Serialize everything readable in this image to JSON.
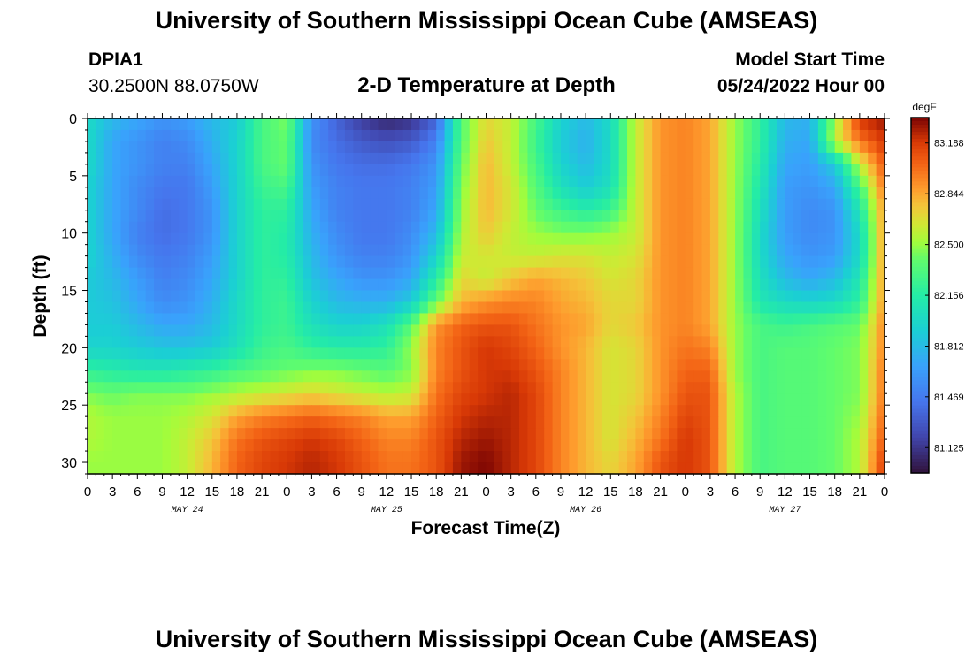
{
  "header": {
    "title": "University of Southern Mississippi Ocean Cube (AMSEAS)",
    "station_id": "DPIA1",
    "station_coords": "30.2500N  88.0750W",
    "plot_title": "2-D Temperature at Depth",
    "start_label": "Model Start Time",
    "start_value": "05/24/2022 Hour 00"
  },
  "footer": {
    "title_repeat": "University of Southern Mississippi Ocean Cube (AMSEAS)"
  },
  "chart_data": {
    "type": "heatmap",
    "title": "2-D Temperature at Depth",
    "xlabel": "Forecast Time(Z)",
    "ylabel": "Depth (ft)",
    "x_range_hours": [
      0,
      96
    ],
    "y_range_ft": [
      0,
      31
    ],
    "y_inverted": true,
    "x_tick_labels": [
      "0",
      "3",
      "6",
      "9",
      "12",
      "15",
      "18",
      "21",
      "0",
      "3",
      "6",
      "9",
      "12",
      "15",
      "18",
      "21",
      "0",
      "3",
      "6",
      "9",
      "12",
      "15",
      "18",
      "21",
      "0",
      "3",
      "6",
      "9",
      "12",
      "15",
      "18",
      "21",
      "0"
    ],
    "y_ticks": [
      0,
      5,
      10,
      15,
      20,
      25,
      30
    ],
    "day_labels": [
      {
        "label": "MAY 24",
        "hour": 12
      },
      {
        "label": "MAY 25",
        "hour": 36
      },
      {
        "label": "MAY 26",
        "hour": 60
      },
      {
        "label": "MAY 27",
        "hour": 84
      }
    ],
    "colorbar": {
      "unit": "degF",
      "min": 80.953,
      "max": 83.36,
      "tick_labels": [
        "83.188",
        "82.844",
        "82.500",
        "82.156",
        "81.812",
        "81.469",
        "81.125"
      ],
      "tick_values": [
        83.188,
        82.844,
        82.5,
        82.156,
        81.812,
        81.469,
        81.125
      ]
    },
    "depths_ft": [
      0,
      2,
      4,
      6,
      8,
      10,
      12,
      14,
      16,
      18,
      20,
      22,
      24,
      26,
      28,
      30
    ],
    "hours": [
      0,
      3,
      6,
      9,
      12,
      15,
      18,
      21,
      24,
      27,
      30,
      33,
      36,
      39,
      42,
      45,
      48,
      51,
      54,
      57,
      60,
      63,
      66,
      69,
      72,
      75,
      78,
      81,
      84,
      87,
      90,
      93,
      96
    ],
    "temperature_degF": [
      [
        82.0,
        81.8,
        81.7,
        81.6,
        81.65,
        81.8,
        81.9,
        82.3,
        82.45,
        81.6,
        81.35,
        81.15,
        81.05,
        81.1,
        81.35,
        82.35,
        82.7,
        82.6,
        82.3,
        81.95,
        81.8,
        82.0,
        82.6,
        82.9,
        82.95,
        82.85,
        82.5,
        82.2,
        81.8,
        81.75,
        82.5,
        83.2,
        83.3
      ],
      [
        82.0,
        81.7,
        81.6,
        81.5,
        81.55,
        81.75,
        81.95,
        82.3,
        82.4,
        81.55,
        81.4,
        81.3,
        81.25,
        81.3,
        81.5,
        82.35,
        82.75,
        82.6,
        82.25,
        81.9,
        81.75,
        82.0,
        82.6,
        82.9,
        82.95,
        82.85,
        82.5,
        82.2,
        81.75,
        81.7,
        82.6,
        83.0,
        83.2
      ],
      [
        82.0,
        81.7,
        81.6,
        81.5,
        81.5,
        81.7,
        81.95,
        82.3,
        82.4,
        81.6,
        81.45,
        81.4,
        81.4,
        81.45,
        81.6,
        82.4,
        82.8,
        82.6,
        82.3,
        81.95,
        81.8,
        82.0,
        82.6,
        82.9,
        82.95,
        82.85,
        82.5,
        82.15,
        81.7,
        81.65,
        81.9,
        82.6,
        83.1
      ],
      [
        81.95,
        81.7,
        81.55,
        81.45,
        81.45,
        81.65,
        81.95,
        82.25,
        82.3,
        81.65,
        81.5,
        81.45,
        81.45,
        81.5,
        81.65,
        82.45,
        82.8,
        82.65,
        82.35,
        82.05,
        81.9,
        82.05,
        82.6,
        82.9,
        82.95,
        82.85,
        82.5,
        82.1,
        81.65,
        81.6,
        81.7,
        82.3,
        83.0
      ],
      [
        81.95,
        81.7,
        81.55,
        81.4,
        81.45,
        81.6,
        81.95,
        82.2,
        82.2,
        81.7,
        81.5,
        81.45,
        81.45,
        81.5,
        81.7,
        82.5,
        82.8,
        82.65,
        82.4,
        82.25,
        82.15,
        82.25,
        82.6,
        82.9,
        82.95,
        82.85,
        82.5,
        82.05,
        81.65,
        81.55,
        81.6,
        82.1,
        82.9
      ],
      [
        81.95,
        81.7,
        81.5,
        81.4,
        81.45,
        81.6,
        81.95,
        82.2,
        82.15,
        81.75,
        81.55,
        81.45,
        81.45,
        81.55,
        81.8,
        82.55,
        82.75,
        82.6,
        82.5,
        82.45,
        82.45,
        82.5,
        82.6,
        82.9,
        82.95,
        82.85,
        82.5,
        82.0,
        81.65,
        81.55,
        81.6,
        82.0,
        82.9
      ],
      [
        81.95,
        81.75,
        81.55,
        81.45,
        81.5,
        81.65,
        81.95,
        82.2,
        82.15,
        81.8,
        81.6,
        81.5,
        81.5,
        81.6,
        81.95,
        82.6,
        82.65,
        82.6,
        82.6,
        82.65,
        82.65,
        82.6,
        82.65,
        82.9,
        82.95,
        82.85,
        82.5,
        82.0,
        81.7,
        81.6,
        81.65,
        82.0,
        82.9
      ],
      [
        81.9,
        81.8,
        81.65,
        81.5,
        81.55,
        81.7,
        81.95,
        82.2,
        82.2,
        81.85,
        81.7,
        81.6,
        81.6,
        81.7,
        82.15,
        82.7,
        82.6,
        82.75,
        82.85,
        82.8,
        82.75,
        82.65,
        82.7,
        82.9,
        82.95,
        82.85,
        82.5,
        82.05,
        81.8,
        81.7,
        81.8,
        82.1,
        82.9
      ],
      [
        81.9,
        81.85,
        81.7,
        81.55,
        81.6,
        81.75,
        82.0,
        82.2,
        82.25,
        81.95,
        81.8,
        81.75,
        81.75,
        81.9,
        82.4,
        82.8,
        82.9,
        82.95,
        82.95,
        82.85,
        82.8,
        82.7,
        82.7,
        82.9,
        82.95,
        82.85,
        82.5,
        82.1,
        82.0,
        81.95,
        82.0,
        82.2,
        82.9
      ],
      [
        81.9,
        81.9,
        81.8,
        81.7,
        81.7,
        81.8,
        82.0,
        82.2,
        82.25,
        82.05,
        81.95,
        81.95,
        82.05,
        82.35,
        82.9,
        83.05,
        83.1,
        83.1,
        83.0,
        82.9,
        82.85,
        82.7,
        82.75,
        82.9,
        82.95,
        82.85,
        82.5,
        82.3,
        82.25,
        82.3,
        82.35,
        82.4,
        82.95
      ],
      [
        81.95,
        81.95,
        81.9,
        81.85,
        81.85,
        81.9,
        82.05,
        82.25,
        82.3,
        82.2,
        82.15,
        82.15,
        82.2,
        82.5,
        82.95,
        83.1,
        83.2,
        83.15,
        83.05,
        82.9,
        82.8,
        82.65,
        82.7,
        82.9,
        83.0,
        82.95,
        82.5,
        82.3,
        82.35,
        82.35,
        82.4,
        82.45,
        82.95
      ],
      [
        82.2,
        82.15,
        82.1,
        82.1,
        82.15,
        82.2,
        82.3,
        82.35,
        82.4,
        82.45,
        82.45,
        82.4,
        82.35,
        82.45,
        82.95,
        83.1,
        83.2,
        83.2,
        83.1,
        82.95,
        82.8,
        82.65,
        82.7,
        82.9,
        83.05,
        83.05,
        82.5,
        82.3,
        82.35,
        82.35,
        82.4,
        82.45,
        83.0
      ],
      [
        82.45,
        82.4,
        82.45,
        82.45,
        82.45,
        82.5,
        82.55,
        82.6,
        82.65,
        82.7,
        82.65,
        82.6,
        82.55,
        82.6,
        83.0,
        83.15,
        83.2,
        83.25,
        83.15,
        82.95,
        82.8,
        82.65,
        82.7,
        82.9,
        83.1,
        83.1,
        82.55,
        82.3,
        82.35,
        82.35,
        82.4,
        82.45,
        83.0
      ],
      [
        82.55,
        82.5,
        82.5,
        82.5,
        82.55,
        82.65,
        82.85,
        82.95,
        83.0,
        83.05,
        83.0,
        82.95,
        82.85,
        82.85,
        83.05,
        83.2,
        83.25,
        83.25,
        83.15,
        82.95,
        82.8,
        82.65,
        82.75,
        82.95,
        83.15,
        83.1,
        82.55,
        82.3,
        82.35,
        82.35,
        82.4,
        82.5,
        83.05
      ],
      [
        82.55,
        82.5,
        82.5,
        82.5,
        82.6,
        82.75,
        83.0,
        83.1,
        83.15,
        83.2,
        83.15,
        83.05,
        82.95,
        82.95,
        83.1,
        83.25,
        83.3,
        83.25,
        83.15,
        82.95,
        82.8,
        82.65,
        82.8,
        83.0,
        83.2,
        83.1,
        82.55,
        82.3,
        82.35,
        82.35,
        82.4,
        82.55,
        83.1
      ],
      [
        82.5,
        82.5,
        82.5,
        82.5,
        82.6,
        82.8,
        83.05,
        83.15,
        83.2,
        83.25,
        83.2,
        83.1,
        83.0,
        83.0,
        83.1,
        83.3,
        83.35,
        83.25,
        83.15,
        82.95,
        82.8,
        82.7,
        82.85,
        83.1,
        83.2,
        83.1,
        82.55,
        82.3,
        82.35,
        82.35,
        82.4,
        82.55,
        83.2
      ]
    ]
  }
}
